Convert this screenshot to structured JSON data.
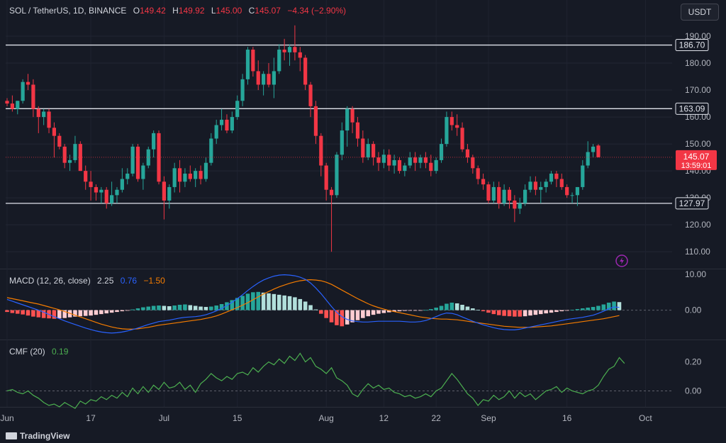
{
  "header": {
    "pair": "SOL / TetherUS, 1D, BINANCE",
    "o_label": "O",
    "o_value": "149.42",
    "h_label": "H",
    "h_value": "149.92",
    "l_label": "L",
    "l_value": "145.00",
    "c_label": "C",
    "c_value": "145.07",
    "change": "−4.34 (−2.90%)"
  },
  "currency_button": "USDT",
  "macd": {
    "name": "MACD (12, 26, close)",
    "v1": "2.25",
    "v2": "0.76",
    "v3": "−1.50"
  },
  "cmf": {
    "name": "CMF (20)",
    "v1": "0.19"
  },
  "branding": "TradingView",
  "colors": {
    "up": "#26a69a",
    "down": "#f23645",
    "macd": "#2962ff",
    "signal": "#f57c00",
    "cmf": "#4caf50",
    "background": "#161a25"
  },
  "chart_data": [
    {
      "type": "candlestick",
      "title": "SOL / TetherUS, 1D, BINANCE",
      "ylim": [
        104,
        195
      ],
      "y_ticks": [
        "110.00",
        "120.00",
        "130.00",
        "140.00",
        "150.00",
        "160.00",
        "170.00",
        "180.00",
        "190.00"
      ],
      "x_ticks": [
        {
          "label": "Jun",
          "index": 0
        },
        {
          "label": "17",
          "index": 16
        },
        {
          "label": "Jul",
          "index": 30
        },
        {
          "label": "15",
          "index": 44
        },
        {
          "label": "Aug",
          "index": 61
        },
        {
          "label": "12",
          "index": 72
        },
        {
          "label": "22",
          "index": 82
        },
        {
          "label": "Sep",
          "index": 92
        },
        {
          "label": "16",
          "index": 107
        },
        {
          "label": "Oct",
          "index": 122
        }
      ],
      "horizontal_lines": [
        186.7,
        163.09,
        127.97
      ],
      "price_labels": [
        {
          "value": "186.70",
          "price": 186.7
        },
        {
          "value": "163.09",
          "price": 163.09
        },
        {
          "value": "127.97",
          "price": 127.97
        }
      ],
      "last_price": {
        "value": "145.07",
        "countdown": "13:59:01",
        "price": 145.07
      },
      "candles": [
        [
          166,
          167,
          164,
          165
        ],
        [
          165,
          168,
          162,
          163
        ],
        [
          163,
          166,
          161,
          166
        ],
        [
          166,
          174,
          165,
          173
        ],
        [
          173,
          176,
          170,
          172
        ],
        [
          172,
          174,
          160,
          163
        ],
        [
          163,
          164,
          154,
          160
        ],
        [
          160,
          163,
          157,
          162
        ],
        [
          162,
          163,
          154,
          156
        ],
        [
          156,
          158,
          145,
          153
        ],
        [
          153,
          154,
          148,
          149
        ],
        [
          149,
          150,
          141,
          143
        ],
        [
          143,
          146,
          140,
          144
        ],
        [
          144,
          153,
          143,
          150
        ],
        [
          150,
          151,
          140,
          140
        ],
        [
          140,
          142,
          133,
          136
        ],
        [
          136,
          140,
          129,
          134
        ],
        [
          134,
          135,
          129,
          132
        ],
        [
          132,
          134,
          128,
          133
        ],
        [
          133,
          134,
          126,
          128
        ],
        [
          128,
          136,
          127,
          131
        ],
        [
          131,
          134,
          128,
          133
        ],
        [
          133,
          141,
          132,
          137
        ],
        [
          137,
          141,
          135,
          139
        ],
        [
          139,
          150,
          138,
          149
        ],
        [
          149,
          150,
          136,
          137
        ],
        [
          137,
          143,
          133,
          142
        ],
        [
          142,
          149,
          141,
          148
        ],
        [
          148,
          155,
          145,
          154
        ],
        [
          154,
          155,
          135,
          136
        ],
        [
          136,
          138,
          122,
          129
        ],
        [
          129,
          135,
          126,
          134
        ],
        [
          134,
          143,
          132,
          141
        ],
        [
          141,
          144,
          132,
          136
        ],
        [
          136,
          141,
          134,
          139
        ],
        [
          139,
          142,
          136,
          137
        ],
        [
          137,
          141,
          134,
          140
        ],
        [
          140,
          142,
          135,
          137
        ],
        [
          137,
          145,
          136,
          143
        ],
        [
          143,
          154,
          142,
          152
        ],
        [
          152,
          159,
          150,
          157
        ],
        [
          157,
          163,
          155,
          159
        ],
        [
          159,
          161,
          154,
          155
        ],
        [
          155,
          162,
          154,
          160
        ],
        [
          160,
          168,
          159,
          166
        ],
        [
          166,
          176,
          164,
          174
        ],
        [
          174,
          186,
          172,
          185
        ],
        [
          185,
          186,
          175,
          177
        ],
        [
          177,
          181,
          170,
          172
        ],
        [
          172,
          177,
          168,
          176
        ],
        [
          176,
          180,
          171,
          172
        ],
        [
          172,
          182,
          167,
          177
        ],
        [
          177,
          187,
          176,
          185
        ],
        [
          185,
          189,
          181,
          184
        ],
        [
          184,
          187,
          179,
          186
        ],
        [
          186,
          194,
          181,
          184
        ],
        [
          184,
          186,
          177,
          182
        ],
        [
          182,
          183,
          170,
          172
        ],
        [
          172,
          173,
          160,
          164
        ],
        [
          164,
          166,
          150,
          153
        ],
        [
          153,
          154,
          138,
          142
        ],
        [
          142,
          143,
          129,
          133
        ],
        [
          133,
          134,
          110,
          131
        ],
        [
          131,
          147,
          130,
          146
        ],
        [
          146,
          158,
          144,
          155
        ],
        [
          155,
          164,
          149,
          163
        ],
        [
          163,
          164,
          154,
          158
        ],
        [
          158,
          160,
          149,
          152
        ],
        [
          152,
          155,
          143,
          145
        ],
        [
          145,
          152,
          144,
          150
        ],
        [
          150,
          151,
          142,
          145
        ],
        [
          145,
          147,
          140,
          143
        ],
        [
          143,
          148,
          141,
          146
        ],
        [
          146,
          148,
          140,
          142
        ],
        [
          142,
          146,
          139,
          144
        ],
        [
          144,
          145,
          139,
          140
        ],
        [
          140,
          143,
          138,
          142
        ],
        [
          142,
          147,
          141,
          145
        ],
        [
          145,
          147,
          140,
          143
        ],
        [
          143,
          146,
          141,
          145
        ],
        [
          145,
          147,
          141,
          143
        ],
        [
          143,
          146,
          138,
          140
        ],
        [
          140,
          145,
          139,
          144
        ],
        [
          144,
          152,
          143,
          150
        ],
        [
          150,
          162,
          149,
          160
        ],
        [
          160,
          162,
          155,
          157
        ],
        [
          157,
          161,
          153,
          156
        ],
        [
          156,
          158,
          147,
          148
        ],
        [
          148,
          150,
          143,
          145
        ],
        [
          145,
          146,
          139,
          141
        ],
        [
          141,
          142,
          135,
          137
        ],
        [
          137,
          139,
          133,
          135
        ],
        [
          135,
          136,
          128,
          129
        ],
        [
          129,
          136,
          128,
          134
        ],
        [
          134,
          136,
          126,
          128
        ],
        [
          128,
          135,
          127,
          133
        ],
        [
          133,
          134,
          126,
          129
        ],
        [
          129,
          131,
          121,
          126
        ],
        [
          126,
          130,
          124,
          128
        ],
        [
          128,
          135,
          127,
          133
        ],
        [
          133,
          138,
          132,
          136
        ],
        [
          136,
          138,
          131,
          133
        ],
        [
          133,
          136,
          128,
          134
        ],
        [
          134,
          137,
          132,
          136
        ],
        [
          136,
          140,
          135,
          139
        ],
        [
          139,
          140,
          134,
          137
        ],
        [
          137,
          139,
          133,
          134
        ],
        [
          134,
          135,
          130,
          131
        ],
        [
          131,
          132,
          128,
          131
        ],
        [
          131,
          134,
          127,
          134
        ],
        [
          134,
          144,
          133,
          142
        ],
        [
          142,
          151,
          141,
          147
        ],
        [
          147,
          150,
          145,
          149
        ],
        [
          149.42,
          149.92,
          145.0,
          145.07
        ]
      ]
    },
    {
      "type": "bar+line",
      "title": "MACD (12, 26, close)",
      "ylim": [
        -8,
        11
      ],
      "y_ticks": [
        "0.00",
        "10.00"
      ],
      "histogram": [
        -0.5,
        -0.8,
        -1,
        -1.2,
        -1.5,
        -1.8,
        -2,
        -2.2,
        -2.3,
        -2.4,
        -2.3,
        -2.2,
        -2,
        -1.8,
        -1.7,
        -1.6,
        -1.5,
        -1.3,
        -1.1,
        -0.9,
        -0.7,
        -0.5,
        -0.3,
        -0.1,
        0.2,
        0.5,
        0.8,
        1,
        1.2,
        1.3,
        1.2,
        1.1,
        1.3,
        1.5,
        1.6,
        1.4,
        1.2,
        1,
        0.9,
        1,
        1.3,
        1.7,
        2.2,
        2.8,
        3.4,
        4,
        4.6,
        5,
        5.1,
        4.9,
        4.7,
        4.5,
        4.3,
        4.1,
        3.9,
        3.6,
        3.1,
        2.4,
        1.4,
        0.2,
        -1,
        -2.2,
        -3.4,
        -4.2,
        -4.5,
        -4,
        -3.4,
        -2.8,
        -2.2,
        -1.7,
        -1.3,
        -1,
        -0.8,
        -0.6,
        -0.4,
        -0.3,
        -0.2,
        -0.15,
        -0.1,
        -0.05,
        0.05,
        0.3,
        0.7,
        1.2,
        1.8,
        2.1,
        1.9,
        1.5,
        1,
        0.5,
        0.1,
        -0.3,
        -0.7,
        -1.1,
        -1.4,
        -1.6,
        -1.7,
        -1.8,
        -1.8,
        -1.7,
        -1.5,
        -1.3,
        -1.1,
        -0.9,
        -0.7,
        -0.5,
        -0.3,
        -0.1,
        0.1,
        0.3,
        0.5,
        0.7,
        0.9,
        1.2,
        1.6,
        2.1,
        2.4,
        2.25
      ],
      "macd": [
        3,
        2.5,
        2,
        1.5,
        1,
        0.5,
        0,
        -0.6,
        -1.2,
        -1.8,
        -2.4,
        -3,
        -3.5,
        -4,
        -4.5,
        -5,
        -5.4,
        -5.8,
        -6.1,
        -6.3,
        -6.4,
        -6.3,
        -6.1,
        -5.8,
        -5.4,
        -5,
        -4.5,
        -4,
        -3.6,
        -3.2,
        -3,
        -2.8,
        -2.5,
        -2.2,
        -2,
        -1.9,
        -1.8,
        -1.6,
        -1.3,
        -0.8,
        -0.2,
        0.5,
        1.3,
        2.2,
        3.2,
        4.3,
        5.5,
        6.6,
        7.6,
        8.4,
        9,
        9.5,
        9.8,
        9.9,
        9.8,
        9.6,
        9.2,
        8.6,
        7.6,
        6.2,
        4.6,
        2.8,
        1,
        -0.6,
        -1.8,
        -2.6,
        -3,
        -3.2,
        -3.3,
        -3.3,
        -3.2,
        -3.1,
        -3.1,
        -3.1,
        -3.1,
        -3.1,
        -3.2,
        -3.3,
        -3.3,
        -3.2,
        -2.9,
        -2.4,
        -1.8,
        -1.2,
        -0.8,
        -0.9,
        -1.3,
        -1.9,
        -2.5,
        -3.1,
        -3.6,
        -4.1,
        -4.5,
        -4.9,
        -5.2,
        -5.4,
        -5.5,
        -5.5,
        -5.3,
        -5,
        -4.7,
        -4.4,
        -4.1,
        -3.8,
        -3.5,
        -3.2,
        -2.9,
        -2.6,
        -2.4,
        -2.2,
        -2,
        -1.7,
        -1.4,
        -0.9,
        -0.3,
        0.4,
        0.9,
        0.76
      ],
      "signal": [
        3.5,
        3.2,
        2.9,
        2.6,
        2.3,
        2,
        1.7,
        1.3,
        0.9,
        0.5,
        0.1,
        -0.4,
        -0.9,
        -1.4,
        -1.9,
        -2.4,
        -2.9,
        -3.4,
        -3.9,
        -4.3,
        -4.7,
        -5,
        -5.2,
        -5.3,
        -5.3,
        -5.2,
        -5,
        -4.8,
        -4.5,
        -4.2,
        -4,
        -3.8,
        -3.6,
        -3.4,
        -3.2,
        -3,
        -2.8,
        -2.6,
        -2.3,
        -2,
        -1.6,
        -1.1,
        -0.5,
        0.1,
        0.7,
        1.4,
        2.1,
        2.9,
        3.7,
        4.5,
        5.2,
        5.9,
        6.5,
        7,
        7.5,
        7.9,
        8.2,
        8.4,
        8.5,
        8.4,
        8.2,
        7.8,
        7.2,
        6.4,
        5.6,
        4.8,
        4,
        3.2,
        2.5,
        1.8,
        1.2,
        0.7,
        0.3,
        -0.1,
        -0.4,
        -0.7,
        -1,
        -1.3,
        -1.6,
        -1.9,
        -2.1,
        -2.3,
        -2.4,
        -2.5,
        -2.5,
        -2.6,
        -2.7,
        -2.9,
        -3.1,
        -3.3,
        -3.5,
        -3.7,
        -3.9,
        -4.1,
        -4.3,
        -4.5,
        -4.6,
        -4.7,
        -4.8,
        -4.8,
        -4.8,
        -4.7,
        -4.6,
        -4.5,
        -4.4,
        -4.2,
        -4,
        -3.8,
        -3.6,
        -3.4,
        -3.2,
        -3,
        -2.8,
        -2.6,
        -2.4,
        -2.1,
        -1.8,
        -1.5
      ]
    },
    {
      "type": "line",
      "title": "CMF (20)",
      "ylim": [
        -0.1,
        0.34
      ],
      "y_ticks": [
        "0.00",
        "0.20"
      ],
      "values": [
        0,
        0.01,
        -0.01,
        -0.02,
        0,
        -0.03,
        -0.05,
        -0.08,
        -0.1,
        -0.09,
        -0.11,
        -0.08,
        -0.1,
        -0.12,
        -0.07,
        -0.09,
        -0.06,
        -0.07,
        -0.04,
        -0.06,
        -0.03,
        -0.05,
        -0.01,
        -0.04,
        0.02,
        -0.02,
        0.03,
        -0.01,
        0.04,
        0.01,
        0.06,
        0.02,
        0.03,
        0.06,
        0.01,
        0.04,
        -0.01,
        0.05,
        0.08,
        0.12,
        0.09,
        0.07,
        0.1,
        0.08,
        0.12,
        0.13,
        0.11,
        0.16,
        0.13,
        0.17,
        0.2,
        0.18,
        0.22,
        0.19,
        0.24,
        0.21,
        0.26,
        0.2,
        0.23,
        0.17,
        0.15,
        0.12,
        0.16,
        0.09,
        0.07,
        0.04,
        -0.02,
        -0.04,
        0.01,
        0.05,
        0.02,
        0.04,
        0.01,
        0.02,
        -0.01,
        -0.02,
        -0.04,
        -0.03,
        -0.05,
        -0.04,
        -0.02,
        -0.04,
        0,
        0.02,
        0.07,
        0.12,
        0.08,
        0.03,
        -0.02,
        -0.05,
        -0.1,
        -0.06,
        -0.07,
        -0.03,
        -0.06,
        -0.04,
        0,
        -0.05,
        -0.01,
        -0.04,
        -0.02,
        -0.06,
        -0.03,
        0,
        0.01,
        0.03,
        -0.01,
        0.02,
        0,
        -0.01,
        -0.02,
        0,
        0.01,
        0.04,
        0.1,
        0.15,
        0.17,
        0.23,
        0.19
      ]
    }
  ]
}
